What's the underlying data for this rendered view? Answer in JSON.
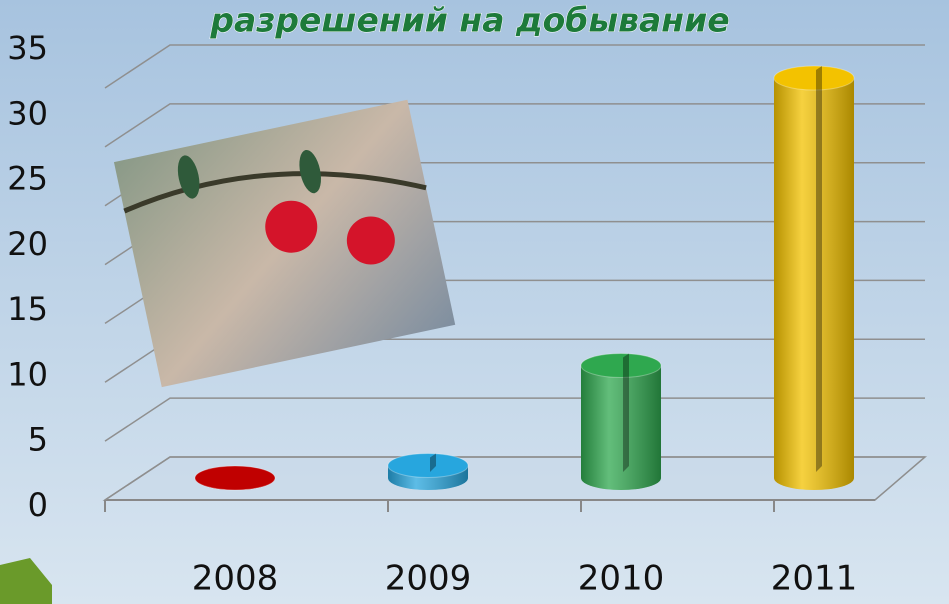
{
  "chart_data": {
    "type": "bar3d",
    "title": "разрешений на добывание",
    "categories": [
      "2008",
      "2009",
      "2010",
      "2011"
    ],
    "values": [
      0,
      1,
      9,
      32
    ],
    "colors": [
      "#c00000",
      "#27a6de",
      "#2fa84f",
      "#f3c200"
    ],
    "ylim": [
      0,
      35
    ],
    "yticks": [
      0,
      5,
      10,
      15,
      20,
      25,
      30,
      35
    ],
    "grid": true
  }
}
